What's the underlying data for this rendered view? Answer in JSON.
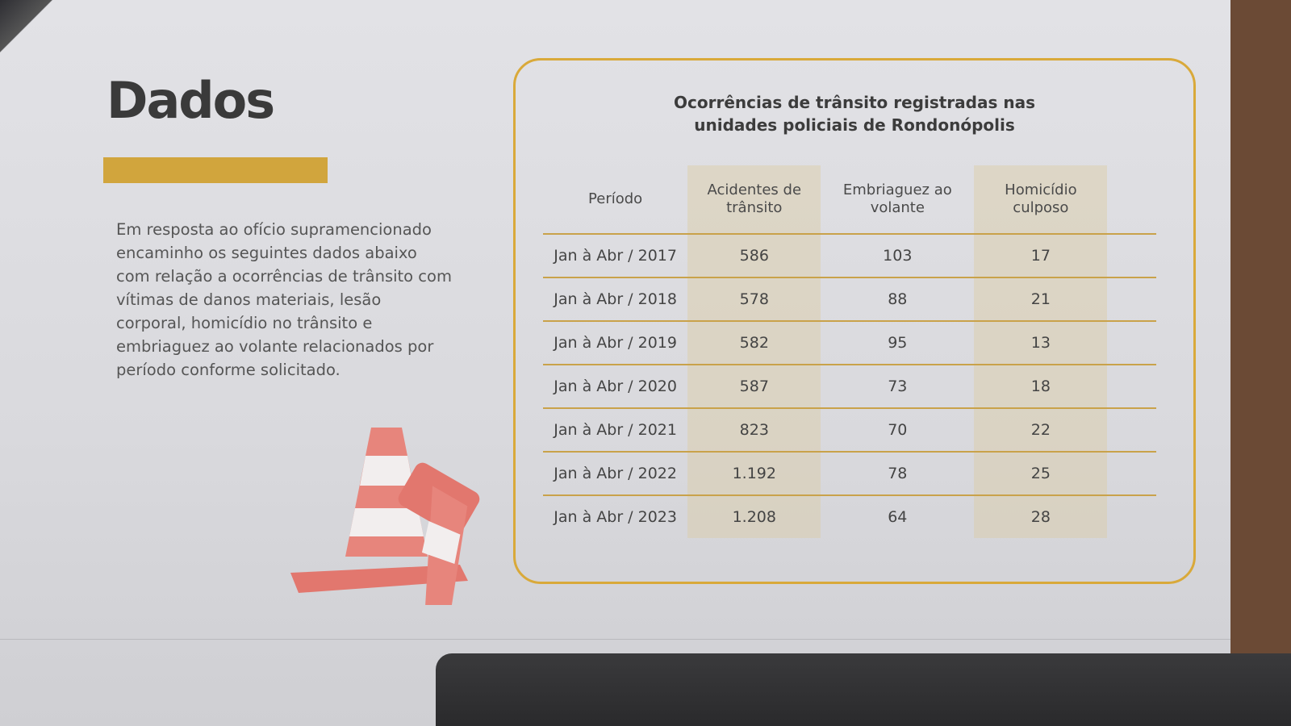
{
  "heading": "Dados",
  "accent_color": "#d1a53d",
  "intro": "Em resposta ao ofício supramencionado encaminho os seguintes dados abaixo com relação a ocorrências de trânsito com vítimas de danos materiais, lesão corporal, homicídio no trânsito e embriaguez ao volante relacionados por período conforme solicitado.",
  "table": {
    "title_line1": "Ocorrências de trânsito registradas nas",
    "title_line2": "unidades policiais de Rondonópolis",
    "headers": [
      "Período",
      "Acidentes de trânsito",
      "Embriaguez ao volante",
      "Homicídio culposo"
    ],
    "rows": [
      [
        "Jan à Abr / 2017",
        "586",
        "103",
        "17"
      ],
      [
        "Jan à Abr / 2018",
        "578",
        "88",
        "21"
      ],
      [
        "Jan à Abr / 2019",
        "582",
        "95",
        "13"
      ],
      [
        "Jan à Abr / 2020",
        "587",
        "73",
        "18"
      ],
      [
        "Jan à Abr / 2021",
        "823",
        "70",
        "22"
      ],
      [
        "Jan à Abr / 2022",
        "1.192",
        "78",
        "25"
      ],
      [
        "Jan à Abr / 2023",
        "1.208",
        "64",
        "28"
      ]
    ]
  },
  "illustration": "traffic-cones"
}
